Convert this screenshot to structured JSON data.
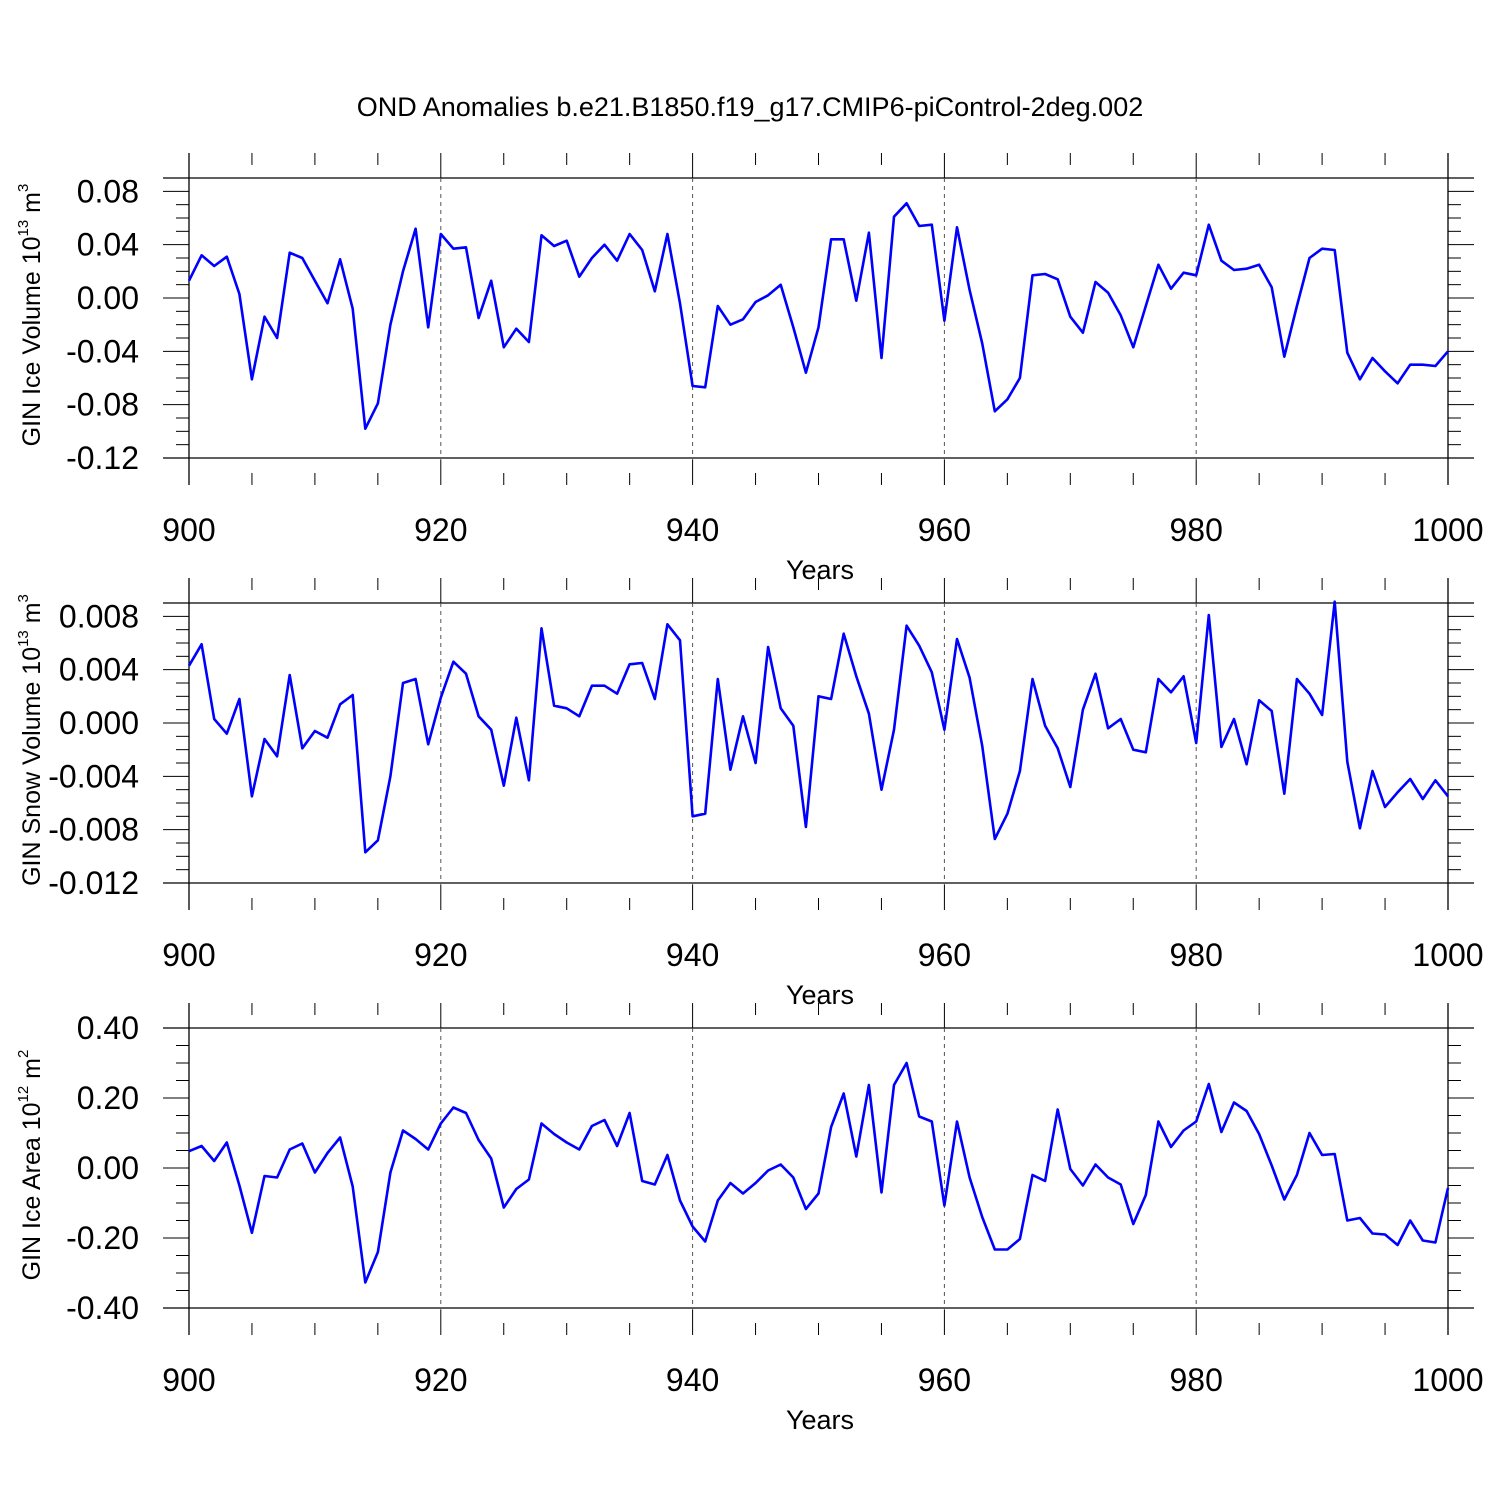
{
  "figure_title": "OND Anomalies b.e21.B1850.f19_g17.CMIP6-piControl-2deg.002",
  "line_color": "#0000ff",
  "chart_data": [
    {
      "type": "line",
      "ylabel": {
        "text": "GIN Ice Volume 10",
        "exp": "13",
        "unit": " m",
        "unit_exp": "3"
      },
      "xlabel": "Years",
      "xlim": [
        900,
        1000
      ],
      "ylim": [
        -0.12,
        0.09
      ],
      "xticks": [
        "900",
        "920",
        "940",
        "960",
        "980",
        "1000"
      ],
      "yticks": [
        "0.08",
        "0.04",
        "0.00",
        "-0.04",
        "-0.08",
        "-0.12"
      ],
      "ytick_values": [
        0.08,
        0.04,
        0.0,
        -0.04,
        -0.08,
        -0.12
      ],
      "x_start": 900,
      "values": [
        0.013,
        0.032,
        0.024,
        0.031,
        0.003,
        -0.061,
        -0.014,
        -0.03,
        0.034,
        0.03,
        0.013,
        -0.004,
        0.029,
        -0.008,
        -0.098,
        -0.079,
        -0.02,
        0.02,
        0.052,
        -0.022,
        0.048,
        0.037,
        0.038,
        -0.015,
        0.013,
        -0.037,
        -0.023,
        -0.033,
        0.047,
        0.039,
        0.043,
        0.016,
        0.03,
        0.04,
        0.028,
        0.048,
        0.036,
        0.005,
        0.048,
        -0.004,
        -0.066,
        -0.067,
        -0.006,
        -0.02,
        -0.016,
        -0.003,
        0.002,
        0.01,
        -0.022,
        -0.056,
        -0.022,
        0.044,
        0.044,
        -0.002,
        0.049,
        -0.045,
        0.061,
        0.071,
        0.054,
        0.055,
        -0.017,
        0.053,
        0.006,
        -0.034,
        -0.085,
        -0.076,
        -0.06,
        0.017,
        0.018,
        0.014,
        -0.014,
        -0.026,
        0.012,
        0.004,
        -0.013,
        -0.037,
        -0.006,
        0.025,
        0.007,
        0.019,
        0.017,
        0.055,
        0.028,
        0.021,
        0.022,
        0.025,
        0.008,
        -0.044,
        -0.006,
        0.03,
        0.037,
        0.036,
        -0.041,
        -0.061,
        -0.045,
        -0.055,
        -0.064,
        -0.05,
        -0.05,
        -0.051,
        -0.04
      ]
    },
    {
      "type": "line",
      "ylabel": {
        "text": "GIN Snow Volume 10",
        "exp": "13",
        "unit": " m",
        "unit_exp": "3"
      },
      "xlabel": "Years",
      "xlim": [
        900,
        1000
      ],
      "ylim": [
        -0.012,
        0.009
      ],
      "xticks": [
        "900",
        "920",
        "940",
        "960",
        "980",
        "1000"
      ],
      "yticks": [
        "0.008",
        "0.004",
        "0.000",
        "-0.004",
        "-0.008",
        "-0.012"
      ],
      "ytick_values": [
        0.008,
        0.004,
        0.0,
        -0.004,
        -0.008,
        -0.012
      ],
      "x_start": 900,
      "values": [
        0.0043,
        0.0059,
        0.0003,
        -0.0008,
        0.0018,
        -0.0055,
        -0.0012,
        -0.0025,
        0.0036,
        -0.0019,
        -0.0006,
        -0.0011,
        0.0014,
        0.0021,
        -0.0097,
        -0.0088,
        -0.004,
        0.003,
        0.0033,
        -0.0016,
        0.0019,
        0.0046,
        0.0037,
        0.0005,
        -0.0005,
        -0.0047,
        0.0004,
        -0.0043,
        0.0071,
        0.0013,
        0.0011,
        0.0005,
        0.0028,
        0.0028,
        0.0022,
        0.0044,
        0.0045,
        0.0018,
        0.0074,
        0.0062,
        -0.007,
        -0.0068,
        0.0033,
        -0.0035,
        0.0005,
        -0.003,
        0.0057,
        0.0011,
        -0.0002,
        -0.0078,
        0.002,
        0.0018,
        0.0067,
        0.0035,
        0.0007,
        -0.005,
        -0.0005,
        0.0073,
        0.0058,
        0.0038,
        -0.0005,
        0.0063,
        0.0034,
        -0.0017,
        -0.0087,
        -0.0068,
        -0.0036,
        0.0033,
        -0.0002,
        -0.0019,
        -0.0048,
        0.001,
        0.0037,
        -0.0004,
        0.0003,
        -0.002,
        -0.0022,
        0.0033,
        0.0023,
        0.0035,
        -0.0015,
        0.0081,
        -0.0018,
        0.0003,
        -0.0031,
        0.0017,
        0.0009,
        -0.0053,
        0.0033,
        0.0022,
        0.0006,
        0.0091,
        -0.0029,
        -0.0079,
        -0.0036,
        -0.0063,
        -0.0052,
        -0.0042,
        -0.0057,
        -0.0043,
        -0.0055
      ]
    },
    {
      "type": "line",
      "ylabel": {
        "text": "GIN Ice Area 10",
        "exp": "12",
        "unit": " m",
        "unit_exp": "2"
      },
      "xlabel": "Years",
      "xlim": [
        900,
        1000
      ],
      "ylim": [
        -0.4,
        0.4
      ],
      "xticks": [
        "900",
        "920",
        "940",
        "960",
        "980",
        "1000"
      ],
      "yticks": [
        "0.40",
        "0.20",
        "0.00",
        "-0.20",
        "-0.40"
      ],
      "ytick_values": [
        0.4,
        0.2,
        0.0,
        -0.2,
        -0.4
      ],
      "x_start": 900,
      "values": [
        0.048,
        0.063,
        0.02,
        0.073,
        -0.05,
        -0.185,
        -0.023,
        -0.027,
        0.053,
        0.07,
        -0.013,
        0.043,
        0.087,
        -0.053,
        -0.327,
        -0.24,
        -0.013,
        0.107,
        0.083,
        0.053,
        0.127,
        0.173,
        0.157,
        0.08,
        0.027,
        -0.113,
        -0.06,
        -0.033,
        0.127,
        0.097,
        0.073,
        0.053,
        0.12,
        0.137,
        0.063,
        0.157,
        -0.037,
        -0.047,
        0.037,
        -0.093,
        -0.167,
        -0.21,
        -0.093,
        -0.043,
        -0.073,
        -0.043,
        -0.007,
        0.01,
        -0.027,
        -0.117,
        -0.073,
        0.117,
        0.213,
        0.033,
        0.237,
        -0.07,
        0.237,
        0.3,
        0.147,
        0.133,
        -0.107,
        0.133,
        -0.027,
        -0.14,
        -0.233,
        -0.233,
        -0.203,
        -0.02,
        -0.037,
        0.167,
        -0.003,
        -0.05,
        0.01,
        -0.027,
        -0.047,
        -0.16,
        -0.077,
        0.133,
        0.06,
        0.107,
        0.133,
        0.24,
        0.103,
        0.187,
        0.163,
        0.097,
        0.007,
        -0.09,
        -0.02,
        0.1,
        0.037,
        0.04,
        -0.15,
        -0.143,
        -0.187,
        -0.19,
        -0.22,
        -0.15,
        -0.207,
        -0.213,
        -0.057
      ]
    }
  ]
}
